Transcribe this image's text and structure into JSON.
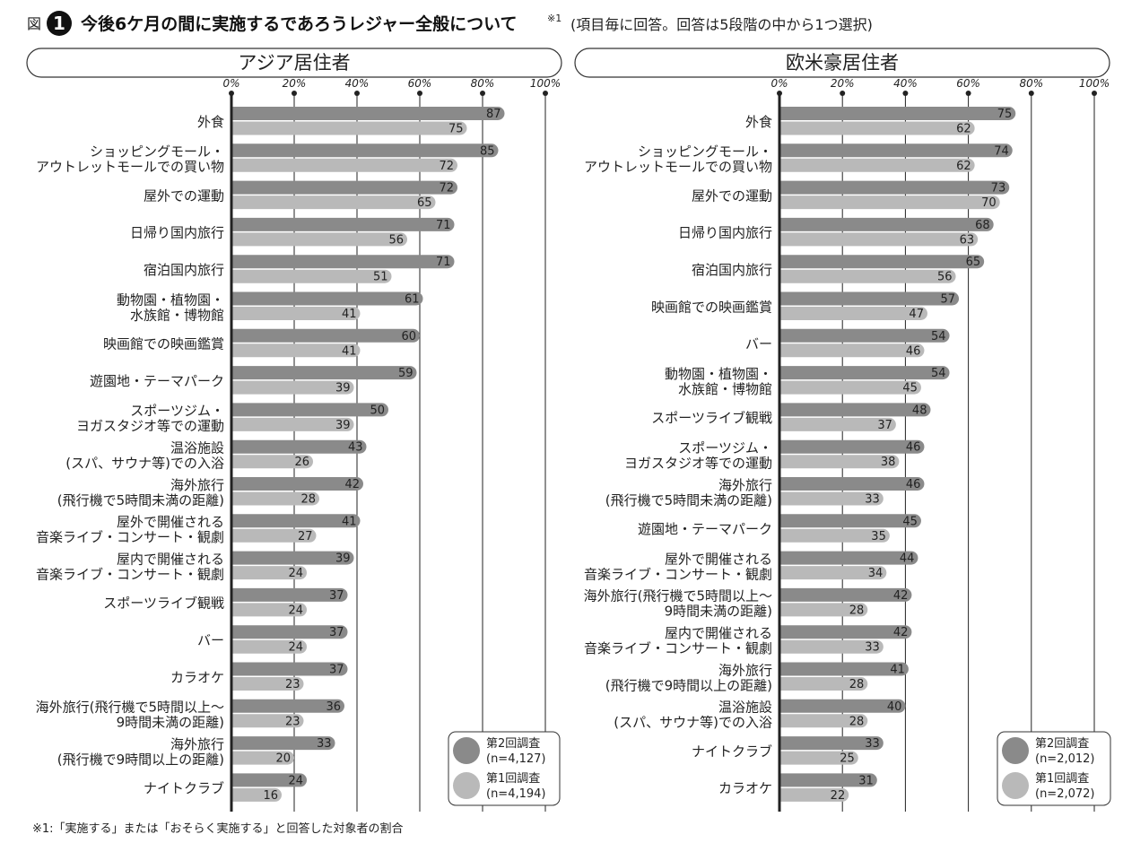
{
  "figure": {
    "prefix": "図",
    "number": "1",
    "title": "今後6ケ月の間に実施するであろうレジャー全般について",
    "title_note": "※1",
    "subtitle": "(項目毎に回答。回答は5段階の中から1つ選択)",
    "footnote": "※1:「実施する」または「おそらく実施する」と回答した対象者の割合"
  },
  "colors": {
    "series2": "#8a8a8a",
    "series1": "#b9b9b9",
    "grid": "#222222",
    "axis": "#222222"
  },
  "chart_data": [
    {
      "type": "bar",
      "orientation": "horizontal",
      "title": "アジア居住者",
      "xlim": [
        0,
        100
      ],
      "x_ticks": [
        "0%",
        "20%",
        "40%",
        "60%",
        "80%",
        "100%"
      ],
      "x_tick_values": [
        0,
        20,
        40,
        60,
        80,
        100
      ],
      "categories": [
        [
          "外食"
        ],
        [
          "ショッピングモール・",
          "アウトレットモールでの買い物"
        ],
        [
          "屋外での運動"
        ],
        [
          "日帰り国内旅行"
        ],
        [
          "宿泊国内旅行"
        ],
        [
          "動物園・植物園・",
          "水族館・博物館"
        ],
        [
          "映画館での映画鑑賞"
        ],
        [
          "遊園地・テーマパーク"
        ],
        [
          "スポーツジム・",
          "ヨガスタジオ等での運動"
        ],
        [
          "温浴施設",
          "(スパ、サウナ等)での入浴"
        ],
        [
          "海外旅行",
          "(飛行機で5時間未満の距離)"
        ],
        [
          "屋外で開催される",
          "音楽ライブ・コンサート・観劇"
        ],
        [
          "屋内で開催される",
          "音楽ライブ・コンサート・観劇"
        ],
        [
          "スポーツライブ観戦"
        ],
        [
          "バー"
        ],
        [
          "カラオケ"
        ],
        [
          "海外旅行(飛行機で5時間以上〜",
          "9時間未満の距離)"
        ],
        [
          "海外旅行",
          "(飛行機で9時間以上の距離)"
        ],
        [
          "ナイトクラブ"
        ]
      ],
      "series": [
        {
          "name": "第2回調査",
          "n": "(n=4,127)",
          "values": [
            87,
            85,
            72,
            71,
            71,
            61,
            60,
            59,
            50,
            43,
            42,
            41,
            39,
            37,
            37,
            37,
            36,
            33,
            24
          ]
        },
        {
          "name": "第1回調査",
          "n": "(n=4,194)",
          "values": [
            75,
            72,
            65,
            56,
            51,
            41,
            41,
            39,
            39,
            26,
            28,
            27,
            24,
            24,
            24,
            23,
            23,
            20,
            16
          ]
        }
      ],
      "legend": "bottom-right"
    },
    {
      "type": "bar",
      "orientation": "horizontal",
      "title": "欧米豪居住者",
      "xlim": [
        0,
        100
      ],
      "x_ticks": [
        "0%",
        "20%",
        "40%",
        "60%",
        "80%",
        "100%"
      ],
      "x_tick_values": [
        0,
        20,
        40,
        60,
        80,
        100
      ],
      "categories": [
        [
          "外食"
        ],
        [
          "ショッピングモール・",
          "アウトレットモールでの買い物"
        ],
        [
          "屋外での運動"
        ],
        [
          "日帰り国内旅行"
        ],
        [
          "宿泊国内旅行"
        ],
        [
          "映画館での映画鑑賞"
        ],
        [
          "バー"
        ],
        [
          "動物園・植物園・",
          "水族館・博物館"
        ],
        [
          "スポーツライブ観戦"
        ],
        [
          "スポーツジム・",
          "ヨガスタジオ等での運動"
        ],
        [
          "海外旅行",
          "(飛行機で5時間未満の距離)"
        ],
        [
          "遊園地・テーマパーク"
        ],
        [
          "屋外で開催される",
          "音楽ライブ・コンサート・観劇"
        ],
        [
          "海外旅行(飛行機で5時間以上〜",
          "9時間未満の距離)"
        ],
        [
          "屋内で開催される",
          "音楽ライブ・コンサート・観劇"
        ],
        [
          "海外旅行",
          "(飛行機で9時間以上の距離)"
        ],
        [
          "温浴施設",
          "(スパ、サウナ等)での入浴"
        ],
        [
          "ナイトクラブ"
        ],
        [
          "カラオケ"
        ]
      ],
      "series": [
        {
          "name": "第2回調査",
          "n": "(n=2,012)",
          "values": [
            75,
            74,
            73,
            68,
            65,
            57,
            54,
            54,
            48,
            46,
            46,
            45,
            44,
            42,
            42,
            41,
            40,
            33,
            31
          ]
        },
        {
          "name": "第1回調査",
          "n": "(n=2,072)",
          "values": [
            62,
            62,
            70,
            63,
            56,
            47,
            46,
            45,
            37,
            38,
            33,
            35,
            34,
            28,
            33,
            28,
            28,
            25,
            22
          ]
        }
      ],
      "legend": "bottom-right"
    }
  ]
}
